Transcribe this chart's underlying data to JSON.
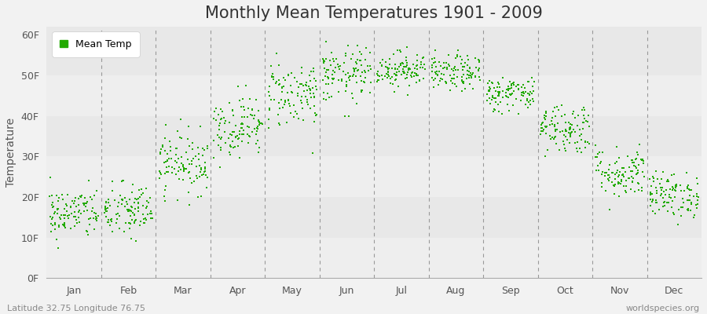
{
  "title": "Monthly Mean Temperatures 1901 - 2009",
  "ylabel": "Temperature",
  "xlabel_labels": [
    "Jan",
    "Feb",
    "Mar",
    "Apr",
    "May",
    "Jun",
    "Jul",
    "Aug",
    "Sep",
    "Oct",
    "Nov",
    "Dec"
  ],
  "ytick_labels": [
    "0F",
    "10F",
    "20F",
    "30F",
    "40F",
    "50F",
    "60F"
  ],
  "ytick_values": [
    0,
    10,
    20,
    30,
    40,
    50,
    60
  ],
  "ylim": [
    0,
    62
  ],
  "legend_label": "Mean Temp",
  "dot_color": "#22aa00",
  "bg_color": "#f2f2f2",
  "plot_bg_bands": [
    "#e8e8e8",
    "#eeeeee"
  ],
  "dash_color": "#999999",
  "footer_left": "Latitude 32.75 Longitude 76.75",
  "footer_right": "worldspecies.org",
  "month_means": [
    16.0,
    16.5,
    28.5,
    37.5,
    45.5,
    50.0,
    51.5,
    50.5,
    45.5,
    37.0,
    26.0,
    20.5
  ],
  "month_spreads": [
    3.2,
    3.5,
    3.8,
    3.8,
    4.2,
    3.5,
    2.2,
    2.2,
    2.2,
    3.2,
    3.2,
    2.8
  ],
  "n_points": 109,
  "title_fontsize": 15,
  "label_fontsize": 10,
  "tick_fontsize": 9,
  "footer_fontsize": 8
}
